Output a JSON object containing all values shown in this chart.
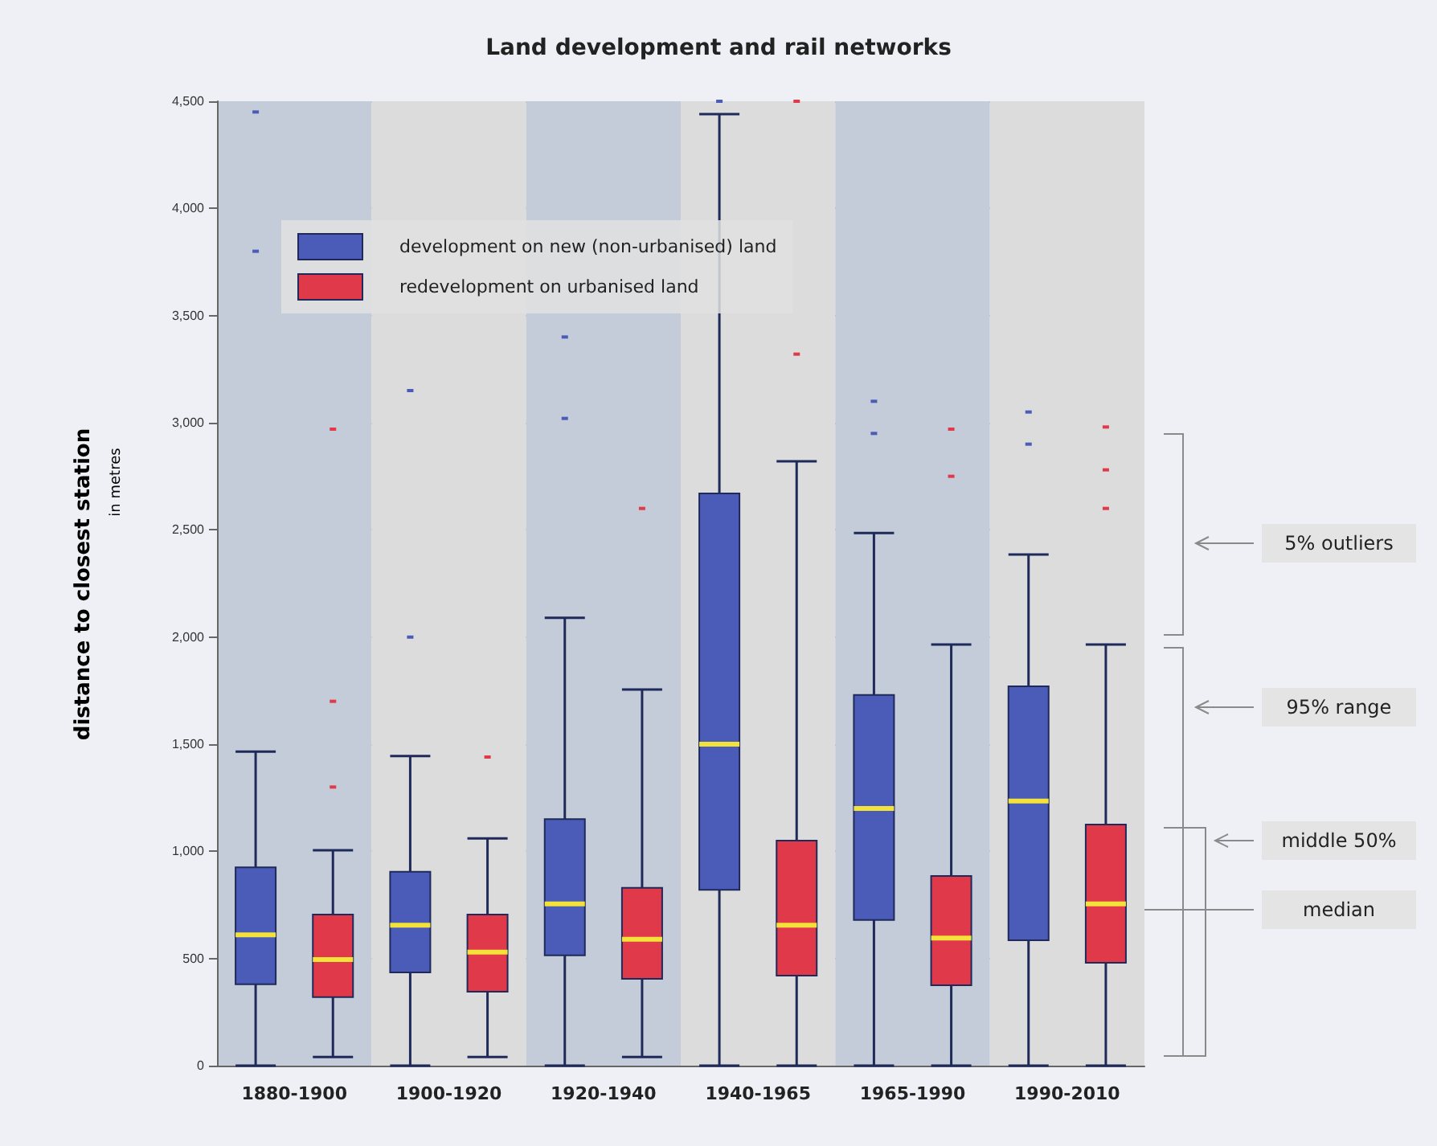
{
  "chart_data": {
    "type": "box",
    "title": "Land development and rail networks",
    "ylabel": "distance to closest station",
    "categories": [
      "1880-1900",
      "1900-1920",
      "1920-1940",
      "1940-1965",
      "1965-1990",
      "1990-2010"
    ],
    "series": [
      {
        "name": "development on new (non-urbanised) land",
        "color": "#4a5cb8",
        "boxes": [
          {
            "low": 0,
            "q1": 380,
            "median": 610,
            "q3": 925,
            "high": 1465,
            "outliers": [
              3800,
              4450
            ]
          },
          {
            "low": 0,
            "q1": 435,
            "median": 655,
            "q3": 905,
            "high": 1445,
            "outliers": [
              2000,
              3150
            ]
          },
          {
            "low": 0,
            "q1": 515,
            "median": 755,
            "q3": 1150,
            "high": 2090,
            "outliers": [
              3020,
              3400
            ]
          },
          {
            "low": 0,
            "q1": 820,
            "median": 1500,
            "q3": 2670,
            "high": 4440,
            "outliers": [
              4500
            ]
          },
          {
            "low": 0,
            "q1": 680,
            "median": 1200,
            "q3": 1730,
            "high": 2485,
            "outliers": [
              2950,
              3100
            ]
          },
          {
            "low": 0,
            "q1": 585,
            "median": 1235,
            "q3": 1770,
            "high": 2385,
            "outliers": [
              2900,
              3050
            ]
          }
        ]
      },
      {
        "name": "redevelopment on urbanised land",
        "color": "#e03a4a",
        "boxes": [
          {
            "low": 40,
            "q1": 320,
            "median": 495,
            "q3": 705,
            "high": 1005,
            "outliers": [
              1300,
              1700,
              2970
            ]
          },
          {
            "low": 40,
            "q1": 345,
            "median": 530,
            "q3": 705,
            "high": 1060,
            "outliers": [
              1440
            ]
          },
          {
            "low": 40,
            "q1": 405,
            "median": 590,
            "q3": 830,
            "high": 1755,
            "outliers": [
              2600
            ]
          },
          {
            "low": 0,
            "q1": 420,
            "median": 655,
            "q3": 1050,
            "high": 2820,
            "outliers": [
              3320,
              4500
            ]
          },
          {
            "low": 0,
            "q1": 375,
            "median": 595,
            "q3": 885,
            "high": 1965,
            "outliers": [
              2750,
              2970
            ]
          },
          {
            "low": 0,
            "q1": 480,
            "median": 755,
            "q3": 1125,
            "high": 1965,
            "outliers": [
              2600,
              2780,
              2980
            ]
          }
        ]
      }
    ],
    "ylim": [
      0,
      4500
    ],
    "yticks": [
      0,
      500,
      {
        "value": 1000,
        "label": "1,000"
      },
      {
        "value": 1500,
        "label": "1,500"
      },
      {
        "value": 2000,
        "label": "2,000"
      },
      {
        "value": 2500,
        "label": "2,500"
      },
      {
        "value": 3000,
        "label": "3,000"
      },
      {
        "value": 3500,
        "label": "3,500"
      },
      {
        "value": 4000,
        "label": "4,000"
      },
      {
        "value": 4500,
        "label": "4,500"
      }
    ],
    "grid": "y",
    "legend": "top left",
    "annotations": [
      "in metres",
      "5% outliers",
      "95% range",
      "middle 50%",
      "median"
    ]
  }
}
